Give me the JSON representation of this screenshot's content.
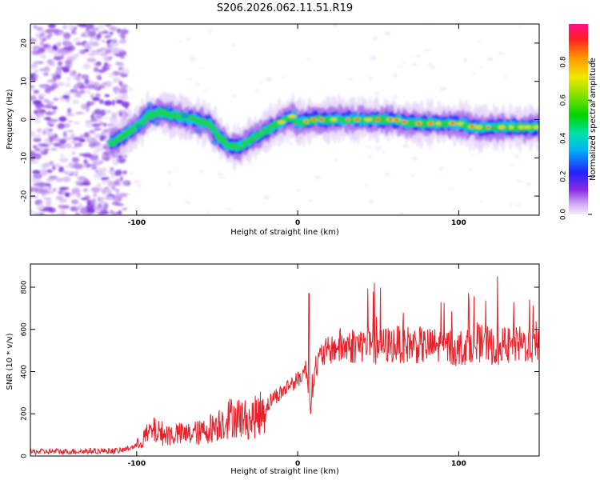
{
  "title": "S206.2026.062.11.51.R19",
  "chart_data": [
    {
      "type": "heatmap",
      "xlabel": "Height of straight line (km)",
      "ylabel": "Frequency (Hz)",
      "xlim": [
        -166,
        150
      ],
      "ylim": [
        -25,
        25
      ],
      "xticks": [
        -100,
        0,
        100
      ],
      "yticks": [
        -20,
        -10,
        0,
        10,
        20
      ],
      "colorbar": {
        "label": "Normalized spectral amplitude",
        "range": [
          0,
          1
        ],
        "ticks": [
          "0.0",
          "0.2",
          "0.4",
          "0.6",
          "0.8"
        ]
      },
      "ridge": {
        "x": [
          -115,
          -107,
          -100,
          -93,
          -85,
          -75,
          -65,
          -55,
          -48,
          -42,
          -36,
          -28,
          -20,
          -12,
          -6,
          -3,
          0,
          10,
          20,
          30,
          40,
          50,
          60,
          70,
          80,
          90,
          100,
          110,
          120,
          130,
          140,
          150
        ],
        "freq": [
          -6,
          -4,
          -2,
          1,
          2,
          1,
          0,
          -1,
          -5,
          -7,
          -7,
          -5,
          -3,
          -1,
          0,
          1,
          -1,
          0,
          0,
          0,
          0,
          0,
          0,
          -1,
          -1,
          -1,
          -1,
          -2,
          -2,
          -2,
          -2,
          -2
        ]
      }
    },
    {
      "type": "line",
      "xlabel": "Height of straight line (km)",
      "ylabel": "SNR (10 * v/v)",
      "xlim": [
        -166,
        150
      ],
      "ylim": [
        0,
        910
      ],
      "xticks": [
        -100,
        0,
        100
      ],
      "yticks": [
        0,
        200,
        400,
        600,
        800
      ],
      "series": [
        {
          "name": "SNR",
          "color": "#e8202a",
          "x": [
            -166,
            -140,
            -110,
            -100,
            -95,
            -90,
            -85,
            -80,
            -75,
            -70,
            -65,
            -60,
            -55,
            -50,
            -45,
            -40,
            -35,
            -30,
            -25,
            -20,
            -15,
            -10,
            -5,
            0,
            3,
            5,
            8,
            10,
            15,
            20,
            25,
            30,
            40,
            50,
            60,
            70,
            80,
            90,
            100,
            110,
            120,
            130,
            140,
            150
          ],
          "y": [
            20,
            22,
            25,
            50,
            90,
            120,
            110,
            100,
            105,
            100,
            110,
            110,
            130,
            150,
            170,
            190,
            180,
            170,
            190,
            230,
            280,
            300,
            340,
            360,
            390,
            420,
            230,
            400,
            480,
            500,
            520,
            520,
            530,
            520,
            530,
            530,
            520,
            520,
            510,
            540,
            520,
            520,
            530,
            520
          ]
        }
      ]
    }
  ]
}
